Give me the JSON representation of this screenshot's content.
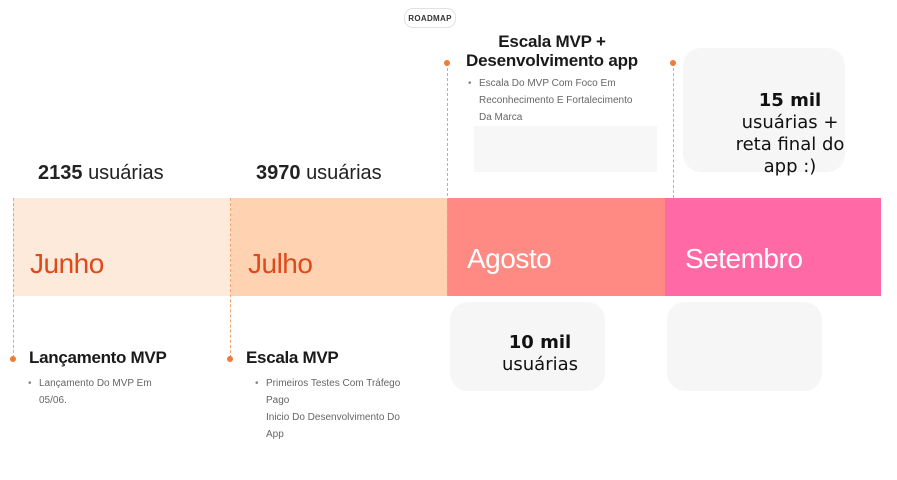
{
  "header": {
    "tag": "ROADMAP"
  },
  "months": [
    {
      "label": "Junho"
    },
    {
      "label": "Julho"
    },
    {
      "label": "Agosto"
    },
    {
      "label": "Setembro"
    }
  ],
  "counts": {
    "junho": {
      "number": "2135",
      "unit": "usuárias"
    },
    "julho": {
      "number": "3970",
      "unit": "usuárias"
    }
  },
  "milestones": {
    "junho": {
      "title": "Lançamento MVP",
      "bullets": [
        "Lançamento Do MVP Em",
        "05/06."
      ]
    },
    "julho": {
      "title": "Escala MVP",
      "bullets": [
        "Primeiros Testes Com Tráfego",
        "Pago",
        "Inicio Do Desenvolvimento Do",
        "App"
      ]
    },
    "agosto": {
      "title_line1": "Escala MVP +",
      "title_line2": "Desenvolvimento app",
      "bullets": [
        "Escala Do MVP Com Foco Em",
        "Reconhecimento E Fortalecimento",
        "Da Marca"
      ]
    }
  },
  "cards": {
    "agosto": {
      "number": "10 mil",
      "text": "usuárias"
    },
    "setembro": {
      "number": "15 mil",
      "line1": "usuárias +",
      "line2": "reta final do",
      "line3": "app :)"
    }
  },
  "colors": {
    "junho": "#fdeadb",
    "julho": "#ffd2b2",
    "agosto": "#ff8a84",
    "setembro": "#ff6aa6",
    "accent": "#e0491a"
  }
}
